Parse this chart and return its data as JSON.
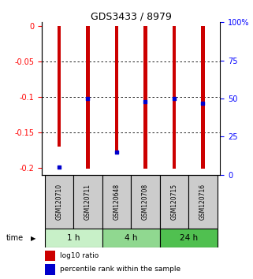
{
  "title": "GDS3433 / 8979",
  "samples": [
    "GSM120710",
    "GSM120711",
    "GSM120648",
    "GSM120708",
    "GSM120715",
    "GSM120716"
  ],
  "log10_ratios": [
    -0.17,
    -0.202,
    -0.178,
    -0.202,
    -0.202,
    -0.202
  ],
  "percentile_ranks": [
    0.05,
    0.5,
    0.15,
    0.48,
    0.5,
    0.47
  ],
  "time_groups": [
    {
      "label": "1 h",
      "start": 0,
      "end": 2,
      "color": "#c8f0c8"
    },
    {
      "label": "4 h",
      "start": 2,
      "end": 4,
      "color": "#90d890"
    },
    {
      "label": "24 h",
      "start": 4,
      "end": 6,
      "color": "#50c050"
    }
  ],
  "ylim": [
    -0.21,
    0.005
  ],
  "yticks_left": [
    0,
    -0.05,
    -0.1,
    -0.15,
    -0.2
  ],
  "yticks_right_vals": [
    0,
    25,
    50,
    75,
    100
  ],
  "bar_color": "#cc0000",
  "dot_color": "#0000cc",
  "bg_color": "#ffffff",
  "sample_box_color": "#cccccc",
  "label_log10": "log10 ratio",
  "label_pct": "percentile rank within the sample",
  "time_label": "time",
  "dotted_gridlines": [
    -0.05,
    -0.1,
    -0.15
  ],
  "bar_width": 0.12
}
